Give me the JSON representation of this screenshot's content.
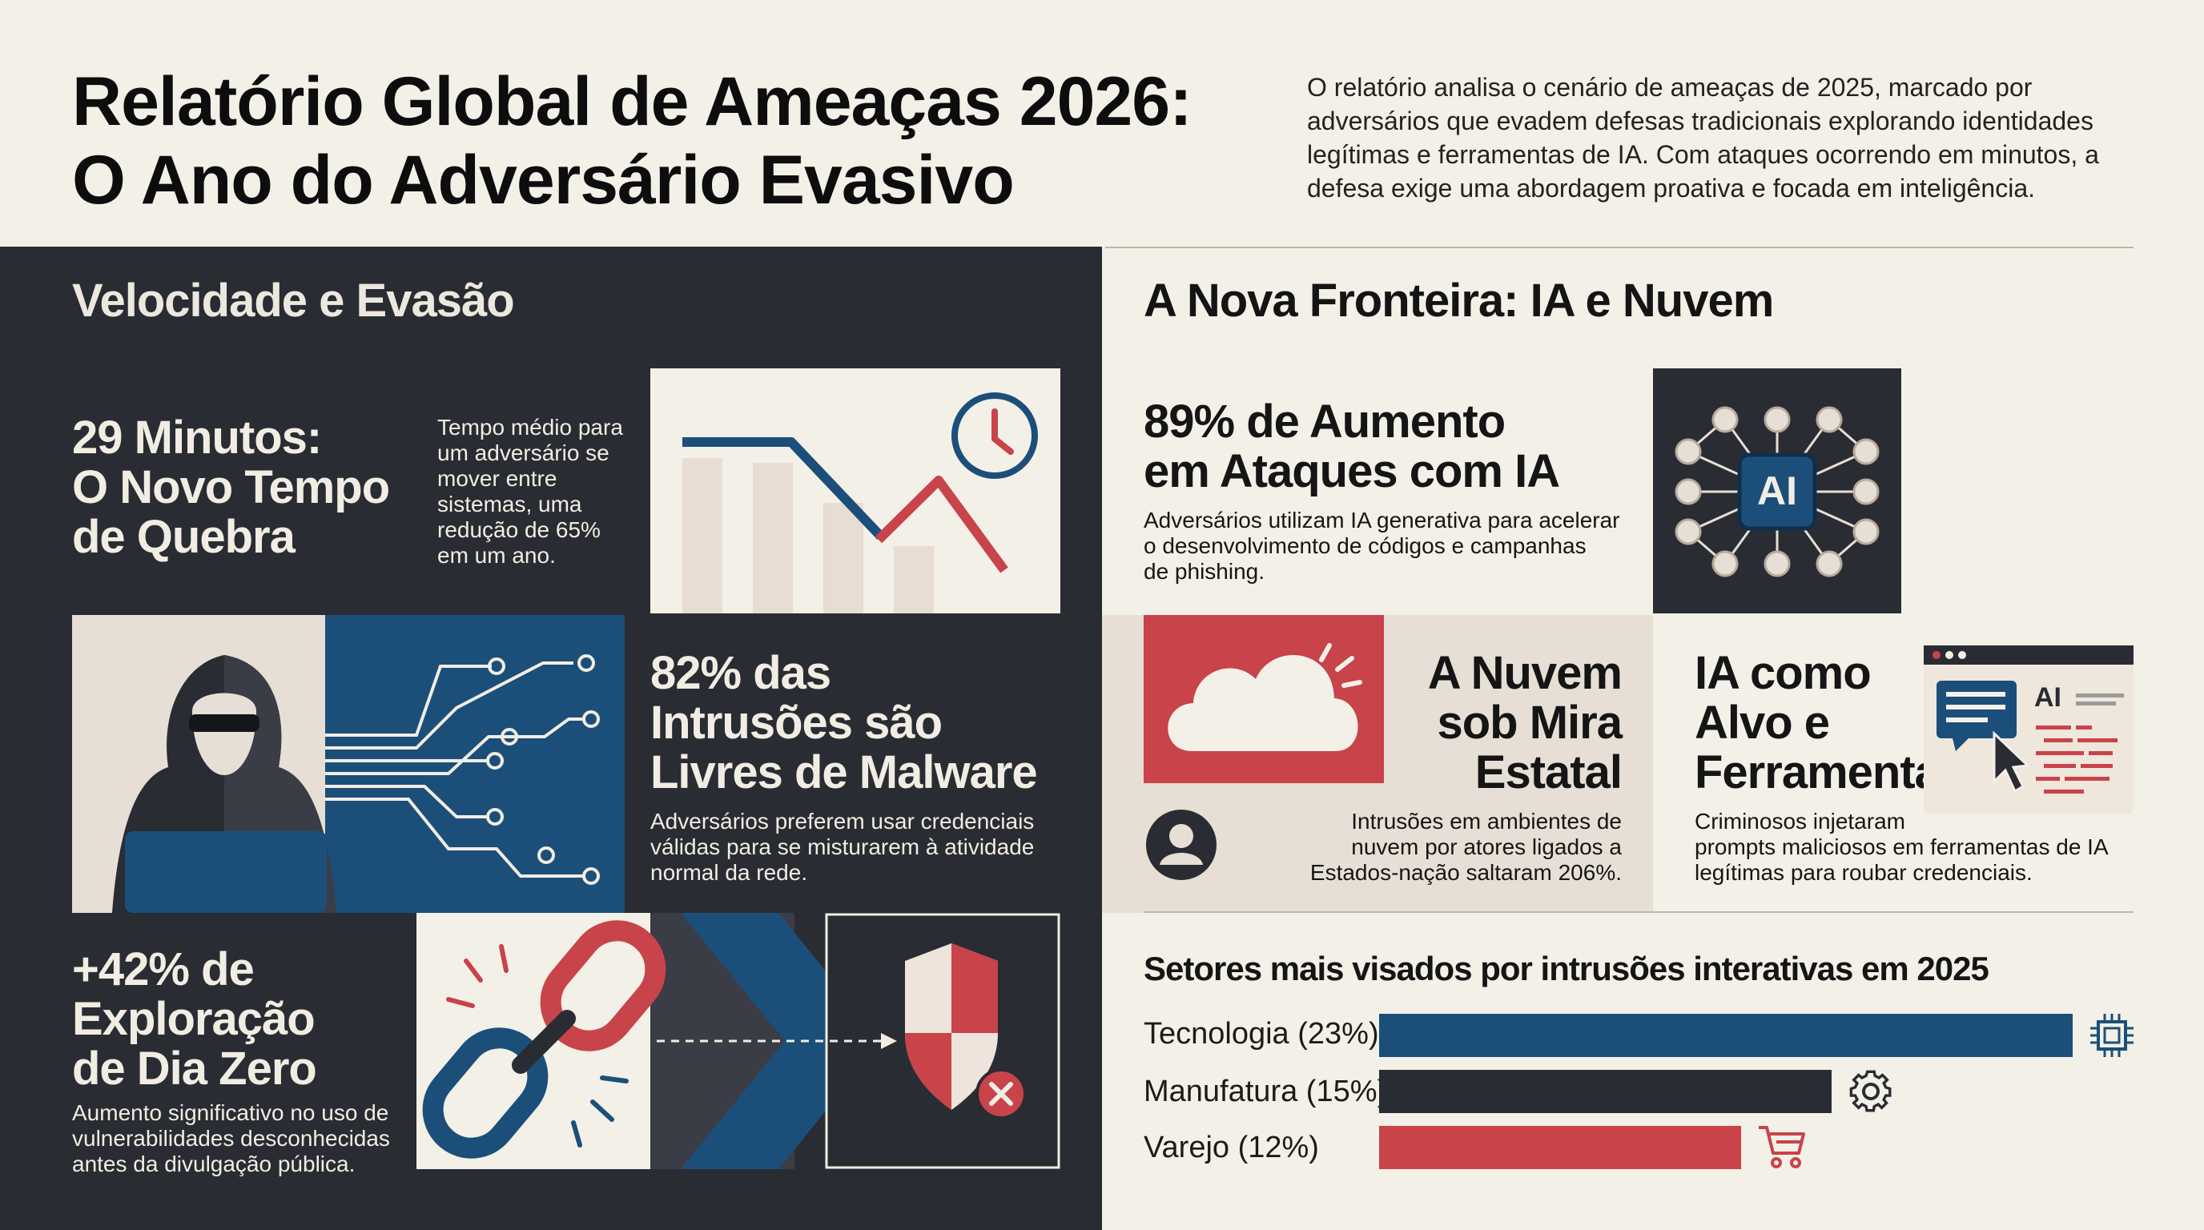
{
  "header": {
    "title_line1": "Relatório Global de Ameaças 2026:",
    "title_line2": "O Ano do Adversário Evasivo",
    "intro": "O relatório analisa o cenário de ameaças de 2025, marcado por adversários que evadem defesas tradicionais explorando identidades legítimas e ferramentas de IA. Com ataques ocorrendo em minutos, a defesa exige uma abordagem proativa e focada em inteligência."
  },
  "left": {
    "heading": "Velocidade e Evasão",
    "breakout": {
      "title": "29 Minutos:\nO Novo Tempo\nde Quebra",
      "text": "Tempo médio para\num adversário se\nmover entre\nsistemas, uma\nredução de 65%\nem um ano."
    },
    "malware_free": {
      "title": "82% das\nIntrusões são\nLivres de Malware",
      "text": "Adversários preferem usar credenciais\nválidas para se misturarem à atividade\nnormal da rede."
    },
    "zero_day": {
      "title": "+42% de\nExploração\nde Dia Zero",
      "text": "Aumento significativo no uso de\nvulnerabilidades desconhecidas\nantes da divulgação pública."
    }
  },
  "right": {
    "heading": "A Nova Fronteira: IA e Nuvem",
    "ai_attacks": {
      "title": "89% de Aumento\nem Ataques com IA",
      "text": "Adversários utilizam IA generativa para acelerar\no desenvolvimento de códigos e campanhas\nde phishing.",
      "chip_label": "AI"
    },
    "cloud": {
      "title": "A Nuvem\nsob Mira\nEstatal",
      "text": "Intrusões em ambientes de\nnuvem por atores ligados a\nEstados-nação saltaram 206%."
    },
    "ai_target": {
      "title": "IA como\nAlvo e\nFerramenta",
      "text": "Criminosos injetaram\nprompts maliciosos em ferramentas de IA\nlegítimas para roubar credenciais.",
      "window_label": "AI"
    },
    "sectors": {
      "title": "Setores mais visados por intrusões interativas em 2025",
      "items": [
        {
          "label": "Tecnologia (23%)",
          "value": 23,
          "color": "#1b4f7a",
          "icon": "chip-icon"
        },
        {
          "label": "Manufatura (15%)",
          "value": 15,
          "color": "#2a2c33",
          "icon": "gear-icon"
        },
        {
          "label": "Varejo (12%)",
          "value": 12,
          "color": "#c8434a",
          "icon": "cart-icon"
        }
      ]
    }
  },
  "colors": {
    "navy": "#1b4f7a",
    "red": "#c8434a",
    "charcoal": "#2a2c33",
    "cream": "#f3f0e7",
    "beige": "#e7dfd5"
  }
}
